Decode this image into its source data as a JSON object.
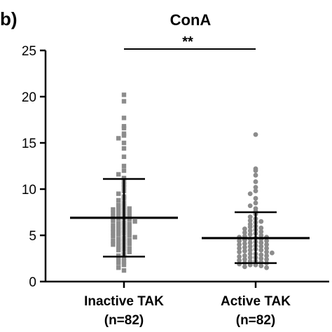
{
  "panel_label": "b)",
  "chart_data": {
    "type": "scatter",
    "title": "ConA",
    "xlabel": "",
    "ylabel": "",
    "ylim": [
      0,
      25
    ],
    "yticks": [
      0,
      5,
      10,
      15,
      20,
      25
    ],
    "grid": false,
    "legend": "none",
    "significance": {
      "label": "**",
      "between": [
        "Inactive TAK",
        "Active TAK"
      ]
    },
    "categories": [
      "Inactive TAK\n(n=82)",
      "Active TAK\n(n=82)"
    ],
    "groups": [
      {
        "label_line1": "Inactive TAK",
        "label_line2": "(n=82)",
        "marker": "square",
        "color": "#8c8c8c",
        "mean": 6.9,
        "sd_low": 2.7,
        "sd_high": 11.1,
        "values": [
          20.2,
          19.5,
          17.7,
          16.8,
          16.6,
          16.0,
          15.8,
          15.5,
          15.0,
          14.4,
          13.5,
          12.5,
          12.0,
          11.6,
          11.2,
          10.8,
          10.5,
          10.2,
          9.8,
          9.5,
          9.2,
          9.0,
          8.8,
          8.5,
          8.3,
          8.1,
          8.0,
          7.9,
          7.8,
          7.7,
          7.6,
          7.5,
          7.4,
          7.3,
          7.2,
          7.1,
          7.0,
          6.9,
          6.8,
          6.7,
          6.6,
          6.5,
          6.4,
          6.3,
          6.2,
          6.1,
          6.0,
          5.9,
          5.8,
          5.7,
          5.6,
          5.5,
          5.4,
          5.3,
          5.2,
          5.1,
          5.0,
          4.9,
          4.8,
          4.7,
          4.6,
          4.5,
          4.4,
          4.3,
          4.2,
          4.1,
          4.0,
          3.9,
          3.8,
          3.6,
          3.5,
          3.4,
          3.2,
          3.0,
          2.8,
          2.6,
          2.4,
          2.2,
          2.0,
          1.8,
          1.5,
          1.2
        ]
      },
      {
        "label_line1": "Active TAK",
        "label_line2": "(n=82)",
        "marker": "circle",
        "color": "#8c8c8c",
        "mean": 4.7,
        "sd_low": 2.0,
        "sd_high": 7.5,
        "values": [
          15.9,
          12.2,
          12.0,
          11.5,
          10.8,
          10.2,
          9.8,
          9.5,
          9.0,
          8.5,
          8.2,
          7.9,
          7.6,
          7.3,
          7.0,
          6.8,
          6.6,
          6.5,
          6.4,
          6.2,
          6.0,
          5.9,
          5.8,
          5.7,
          5.6,
          5.5,
          5.4,
          5.3,
          5.2,
          5.1,
          5.0,
          4.9,
          4.8,
          4.8,
          4.7,
          4.6,
          4.6,
          4.5,
          4.4,
          4.4,
          4.3,
          4.2,
          4.2,
          4.1,
          4.0,
          4.0,
          3.9,
          3.8,
          3.8,
          3.7,
          3.6,
          3.6,
          3.5,
          3.4,
          3.4,
          3.3,
          3.2,
          3.2,
          3.1,
          3.0,
          3.0,
          2.9,
          2.8,
          2.8,
          2.7,
          2.6,
          2.6,
          2.5,
          2.4,
          2.4,
          2.3,
          2.2,
          2.2,
          2.1,
          2.0,
          2.0,
          1.9,
          1.8,
          1.8,
          1.7,
          1.6,
          1.5
        ]
      }
    ]
  }
}
